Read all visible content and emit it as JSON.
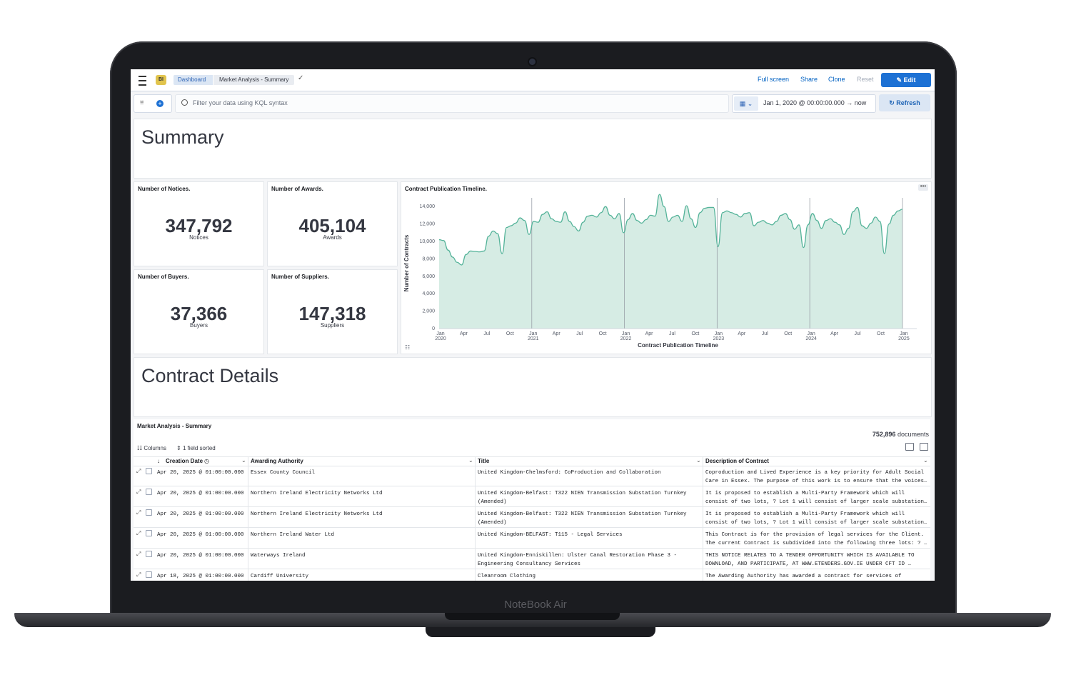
{
  "device": {
    "brand": "NoteBook Air"
  },
  "header": {
    "logo_text": "BI",
    "breadcrumbs": [
      "Dashboard",
      "Market Analysis - Summary"
    ],
    "actions": {
      "full_screen": "Full screen",
      "share": "Share",
      "clone": "Clone",
      "reset": "Reset",
      "edit": "Edit"
    }
  },
  "query_bar": {
    "placeholder": "Filter your data using KQL syntax",
    "date_start": "Jan 1, 2020 @ 00:00:00.000",
    "date_arrow": "→",
    "date_end": "now",
    "refresh": "Refresh"
  },
  "sections": {
    "summary_title": "Summary",
    "details_title": "Contract Details"
  },
  "metrics": [
    {
      "label": "Number of Notices.",
      "value": "347,792",
      "unit": "Notices"
    },
    {
      "label": "Number of Awards.",
      "value": "405,104",
      "unit": "Awards"
    },
    {
      "label": "Number of Buyers.",
      "value": "37,366",
      "unit": "Buyers"
    },
    {
      "label": "Number of Suppliers.",
      "value": "147,318",
      "unit": "Suppliers"
    }
  ],
  "chart_panel": {
    "title": "Contract Publication Timeline.",
    "menu": "•••"
  },
  "chart_data": {
    "type": "area",
    "xlabel": "Contract Publication Timeline",
    "ylabel": "Number of Contracts",
    "ylim": [
      0,
      15000
    ],
    "yticks": [
      "0",
      "2,000",
      "4,000",
      "6,000",
      "8,000",
      "10,000",
      "12,000",
      "14,000"
    ],
    "xticks": [
      "Jan 2020",
      "Apr",
      "Jul",
      "Oct",
      "Jan 2021",
      "Apr",
      "Jul",
      "Oct",
      "Jan 2022",
      "Apr",
      "Jul",
      "Oct",
      "Jan 2023",
      "Apr",
      "Jul",
      "Oct",
      "Jan 2024",
      "Apr",
      "Jul",
      "Oct",
      "Jan 2025"
    ],
    "color": "#54b399",
    "fill": "#d6ece4",
    "values": [
      10200,
      10100,
      9000,
      8200,
      7600,
      7300,
      8500,
      8900,
      8850,
      8800,
      8900,
      10600,
      11200,
      10900,
      8600,
      11600,
      11800,
      12100,
      12700,
      12400,
      10800,
      12300,
      12200,
      13100,
      13400,
      12600,
      12300,
      12200,
      13400,
      12300,
      11700,
      11200,
      12200,
      12900,
      13000,
      12800,
      13300,
      14000,
      13000,
      12600,
      13200,
      11000,
      12500,
      13200,
      12400,
      12100,
      12500,
      13000,
      12900,
      15400,
      14000,
      12300,
      12800,
      13000,
      12300,
      14100,
      12600,
      11600,
      13300,
      13800,
      13900,
      13900,
      9400,
      13300,
      13500,
      13300,
      13100,
      12800,
      13200,
      13300,
      11800,
      12200,
      12400,
      12100,
      11900,
      12300,
      13000,
      13200,
      12500,
      11400,
      11900,
      9300,
      11900,
      13200,
      12400,
      11500,
      12400,
      12600,
      12200,
      11900,
      10800,
      11500,
      13400,
      13900,
      11800,
      11500,
      12100,
      12800,
      12300,
      8600,
      12000,
      13000,
      13500,
      13700
    ],
    "reference_lines_at": [
      "Jan 2021",
      "Jan 2022",
      "Jan 2023",
      "Jan 2024",
      "Jan 2025"
    ]
  },
  "table": {
    "title": "Market Analysis - Summary",
    "doc_count": "752,896",
    "doc_label": "documents",
    "columns_btn": "Columns",
    "sort_btn": "1 field sorted",
    "headers": [
      "Creation Date",
      "Awarding Authority",
      "Title",
      "Description of Contract"
    ],
    "rows": [
      {
        "date": "Apr 20, 2025 @ 01:00:00.000",
        "authority": "Essex County Council",
        "title": [
          "United Kingdom-Chelmsford: CoProduction and Collaboration",
          ""
        ],
        "desc": [
          "Coproduction and Lived Experience is a key priority for Adult Social",
          "Care in Essex. The purpose of this work is to ensure that the voices…"
        ]
      },
      {
        "date": "Apr 20, 2025 @ 01:00:00.000",
        "authority": "Northern Ireland Electricity Networks Ltd",
        "title": [
          "United Kingdom-Belfast: T322 NIEN Transmission Substation Turnkey",
          "(Amended)"
        ],
        "desc": [
          "It is proposed to establish a Multi-Party Framework which will",
          "consist of two lots, ? Lot 1 will consist of larger scale substation…"
        ]
      },
      {
        "date": "Apr 20, 2025 @ 01:00:00.000",
        "authority": "Northern Ireland Electricity Networks Ltd",
        "title": [
          "United Kingdom-Belfast: T322 NIEN Transmission Substation Turnkey",
          "(Amended)"
        ],
        "desc": [
          "It is proposed to establish a Multi-Party Framework which will",
          "consist of two lots, ? Lot 1 will consist of larger scale substation…"
        ]
      },
      {
        "date": "Apr 20, 2025 @ 01:00:00.000",
        "authority": "Northern Ireland Water Ltd",
        "title": [
          "United Kingdom-BELFAST: T115 - Legal Services",
          ""
        ],
        "desc": [
          "This Contract is for the provision of legal services for the Client.",
          "The current Contract is subdivided into the following three lots: ? …"
        ]
      },
      {
        "date": "Apr 20, 2025 @ 01:00:00.000",
        "authority": "Waterways Ireland",
        "title": [
          "United Kingdom-Enniskillen: Ulster Canal Restoration Phase 3 -",
          "Engineering Consultancy Services"
        ],
        "desc": [
          "THIS NOTICE RELATES TO A TENDER OPPORTUNITY WHICH IS AVAILABLE TO",
          "DOWNLOAD, AND PARTICIPATE, AT WWW.ETENDERS.GOV.IE UNDER CFT ID …"
        ]
      },
      {
        "date": "Apr 18, 2025 @ 01:00:00.000",
        "authority": "Cardiff University",
        "title": [
          "Cleanroom Clothing",
          ""
        ],
        "desc": [
          "The Awarding Authority has awarded a contract for services of",
          ""
        ]
      }
    ]
  }
}
